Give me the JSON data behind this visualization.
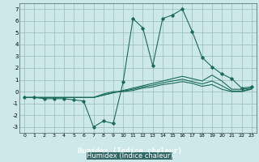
{
  "xlabel": "Humidex (Indice chaleur)",
  "bg_color": "#cce8e8",
  "footer_color": "#336666",
  "line_color": "#1a6b5a",
  "grid_color": "#99bbbb",
  "xlim": [
    -0.5,
    23.5
  ],
  "ylim": [
    -3.5,
    7.5
  ],
  "yticks": [
    -3,
    -2,
    -1,
    0,
    1,
    2,
    3,
    4,
    5,
    6,
    7
  ],
  "xticks": [
    0,
    1,
    2,
    3,
    4,
    5,
    6,
    7,
    8,
    9,
    10,
    11,
    12,
    13,
    14,
    15,
    16,
    17,
    18,
    19,
    20,
    21,
    22,
    23
  ],
  "series": [
    {
      "x": [
        0,
        1,
        2,
        3,
        4,
        5,
        6,
        7,
        8,
        9,
        10,
        11,
        12,
        13,
        14,
        15,
        16,
        17,
        18,
        19,
        20,
        21,
        22,
        23
      ],
      "y": [
        -0.5,
        -0.5,
        -0.6,
        -0.6,
        -0.6,
        -0.7,
        -0.8,
        -3.0,
        -2.5,
        -2.7,
        0.8,
        6.2,
        5.4,
        2.2,
        6.2,
        6.5,
        7.0,
        5.1,
        2.9,
        2.1,
        1.5,
        1.1,
        0.3,
        0.4
      ],
      "marker": true
    },
    {
      "x": [
        0,
        1,
        2,
        3,
        4,
        5,
        6,
        7,
        8,
        9,
        10,
        11,
        12,
        13,
        14,
        15,
        16,
        17,
        18,
        19,
        20,
        21,
        22,
        23
      ],
      "y": [
        -0.5,
        -0.5,
        -0.5,
        -0.5,
        -0.5,
        -0.5,
        -0.5,
        -0.5,
        -0.3,
        -0.1,
        0.1,
        0.3,
        0.5,
        0.7,
        0.9,
        1.1,
        1.3,
        1.1,
        0.9,
        1.4,
        0.9,
        0.2,
        0.2,
        0.3
      ],
      "marker": false
    },
    {
      "x": [
        0,
        1,
        2,
        3,
        4,
        5,
        6,
        7,
        8,
        9,
        10,
        11,
        12,
        13,
        14,
        15,
        16,
        17,
        18,
        19,
        20,
        21,
        22,
        23
      ],
      "y": [
        -0.5,
        -0.5,
        -0.5,
        -0.5,
        -0.5,
        -0.5,
        -0.5,
        -0.5,
        -0.3,
        -0.1,
        0.05,
        0.2,
        0.4,
        0.55,
        0.75,
        0.9,
        1.05,
        0.85,
        0.65,
        0.9,
        0.5,
        0.05,
        0.05,
        0.25
      ],
      "marker": false
    },
    {
      "x": [
        0,
        1,
        2,
        3,
        4,
        5,
        6,
        7,
        8,
        9,
        10,
        11,
        12,
        13,
        14,
        15,
        16,
        17,
        18,
        19,
        20,
        21,
        22,
        23
      ],
      "y": [
        -0.5,
        -0.5,
        -0.5,
        -0.5,
        -0.5,
        -0.5,
        -0.5,
        -0.5,
        -0.2,
        0.0,
        0.0,
        0.1,
        0.3,
        0.4,
        0.6,
        0.7,
        0.85,
        0.7,
        0.45,
        0.6,
        0.2,
        0.0,
        0.0,
        0.2
      ],
      "marker": false
    }
  ]
}
